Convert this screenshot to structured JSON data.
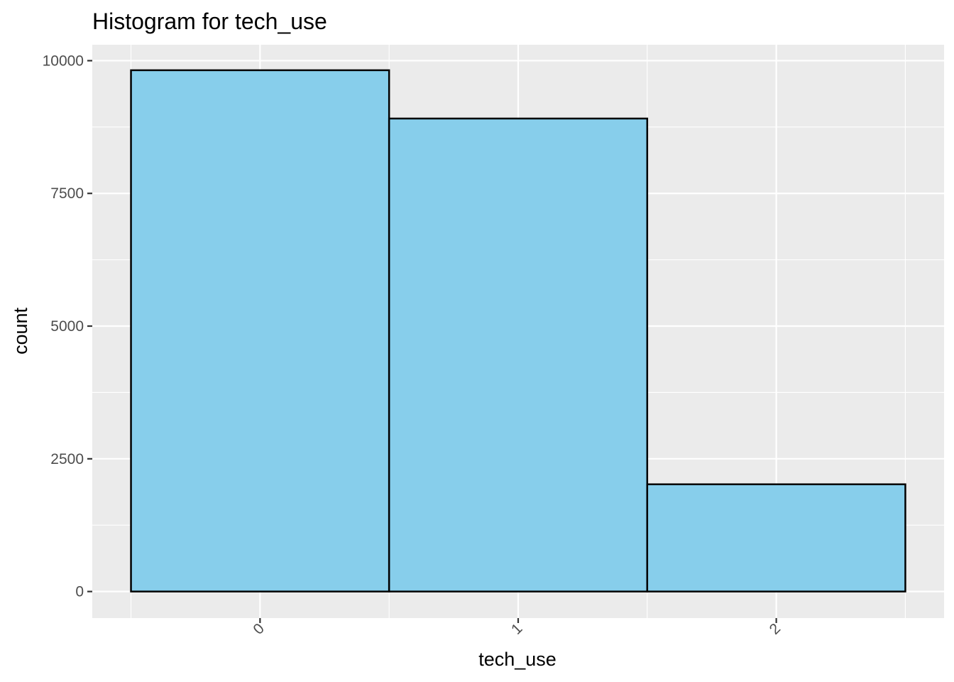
{
  "chart_data": {
    "type": "bar",
    "title": "Histogram for tech_use",
    "xlabel": "tech_use",
    "ylabel": "count",
    "categories": [
      "0",
      "1",
      "2"
    ],
    "values": [
      9820,
      8910,
      2020
    ],
    "ylim": [
      -500,
      10300
    ],
    "xlim": [
      -0.65,
      2.65
    ],
    "yticks": [
      0,
      2500,
      5000,
      7500,
      10000
    ],
    "ytick_labels": [
      "0",
      "2500",
      "5000",
      "7500",
      "10000"
    ],
    "xtick_labels": [
      "0",
      "1",
      "2"
    ],
    "xtick_rotation_deg": 45,
    "bin_width": 1,
    "grid": true,
    "legend": false,
    "colors": {
      "panel_background": "#ebebeb",
      "grid_major": "#ffffff",
      "grid_minor": "#ffffff",
      "bar_fill": "#87ceeb",
      "bar_outline": "#000000",
      "tick_text": "#4d4d4d",
      "tick_mark": "#333333"
    }
  }
}
